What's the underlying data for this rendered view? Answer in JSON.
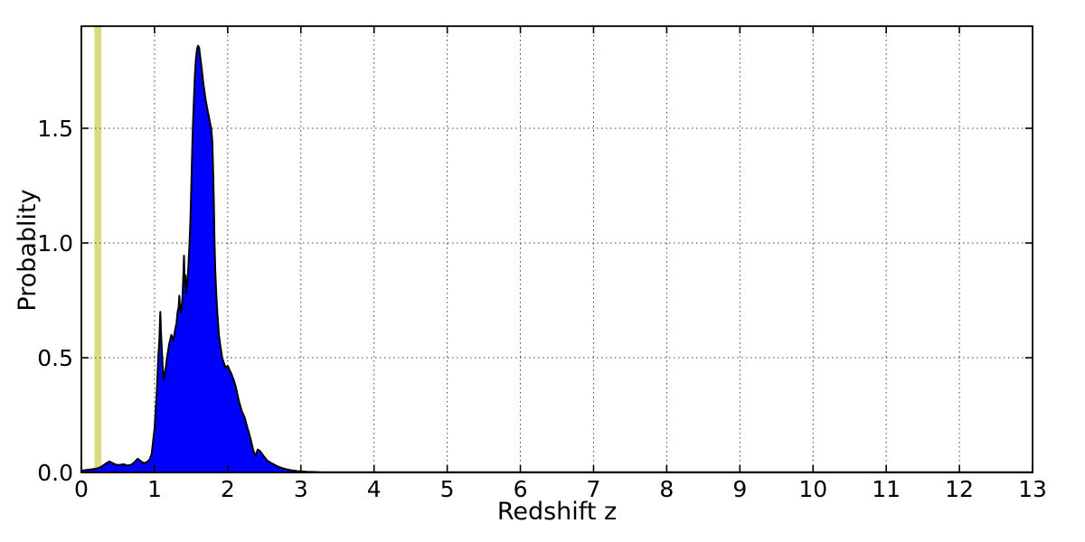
{
  "chart_data": {
    "type": "area",
    "title": "",
    "xlabel": "Redshift  z",
    "ylabel": "Probablity",
    "xlim": [
      0,
      13
    ],
    "ylim": [
      0,
      1.945
    ],
    "grid": "dotted",
    "legend": "none",
    "colors": {
      "fill": "#0000ff",
      "edge": "#000000",
      "band": "#dbdc81",
      "spine": "#000000",
      "grid": "#000000",
      "background": "#ffffff"
    },
    "xticks": [
      {
        "v": 0,
        "label": "0"
      },
      {
        "v": 1,
        "label": "1"
      },
      {
        "v": 2,
        "label": "2"
      },
      {
        "v": 3,
        "label": "3"
      },
      {
        "v": 4,
        "label": "4"
      },
      {
        "v": 5,
        "label": "5"
      },
      {
        "v": 6,
        "label": "6"
      },
      {
        "v": 7,
        "label": "7"
      },
      {
        "v": 8,
        "label": "8"
      },
      {
        "v": 9,
        "label": "9"
      },
      {
        "v": 10,
        "label": "10"
      },
      {
        "v": 11,
        "label": "11"
      },
      {
        "v": 12,
        "label": "12"
      },
      {
        "v": 13,
        "label": "13"
      }
    ],
    "yticks": [
      {
        "v": 0.0,
        "label": "0.0"
      },
      {
        "v": 0.5,
        "label": "0.5"
      },
      {
        "v": 1.0,
        "label": "1.0"
      },
      {
        "v": 1.5,
        "label": "1.5"
      }
    ],
    "vspan": {
      "name": "spec-z-highlight-band",
      "x0": 0.178,
      "x1": 0.274
    },
    "series": [
      {
        "name": "photo-z-probability-density",
        "peak_z": 1.6,
        "peak_value": 1.86,
        "points": [
          [
            0.0,
            0.008
          ],
          [
            0.1,
            0.012
          ],
          [
            0.2,
            0.016
          ],
          [
            0.27,
            0.024
          ],
          [
            0.33,
            0.038
          ],
          [
            0.38,
            0.048
          ],
          [
            0.43,
            0.04
          ],
          [
            0.48,
            0.033
          ],
          [
            0.53,
            0.033
          ],
          [
            0.58,
            0.036
          ],
          [
            0.63,
            0.03
          ],
          [
            0.68,
            0.033
          ],
          [
            0.73,
            0.046
          ],
          [
            0.77,
            0.06
          ],
          [
            0.81,
            0.05
          ],
          [
            0.85,
            0.041
          ],
          [
            0.89,
            0.044
          ],
          [
            0.93,
            0.055
          ],
          [
            0.96,
            0.08
          ],
          [
            1.0,
            0.19
          ],
          [
            1.03,
            0.35
          ],
          [
            1.05,
            0.5
          ],
          [
            1.065,
            0.575
          ],
          [
            1.079,
            0.7
          ],
          [
            1.09,
            0.6
          ],
          [
            1.11,
            0.47
          ],
          [
            1.13,
            0.4
          ],
          [
            1.15,
            0.45
          ],
          [
            1.17,
            0.5
          ],
          [
            1.2,
            0.56
          ],
          [
            1.23,
            0.6
          ],
          [
            1.255,
            0.575
          ],
          [
            1.28,
            0.62
          ],
          [
            1.3,
            0.65
          ],
          [
            1.315,
            0.7
          ],
          [
            1.33,
            0.72
          ],
          [
            1.338,
            0.77
          ],
          [
            1.35,
            0.71
          ],
          [
            1.365,
            0.7
          ],
          [
            1.38,
            0.76
          ],
          [
            1.393,
            0.85
          ],
          [
            1.402,
            0.945
          ],
          [
            1.413,
            0.82
          ],
          [
            1.422,
            0.86
          ],
          [
            1.433,
            0.78
          ],
          [
            1.445,
            0.82
          ],
          [
            1.46,
            0.88
          ],
          [
            1.478,
            1.0
          ],
          [
            1.49,
            1.1
          ],
          [
            1.505,
            1.28
          ],
          [
            1.52,
            1.47
          ],
          [
            1.535,
            1.6
          ],
          [
            1.55,
            1.72
          ],
          [
            1.565,
            1.8
          ],
          [
            1.58,
            1.845
          ],
          [
            1.595,
            1.86
          ],
          [
            1.61,
            1.85
          ],
          [
            1.625,
            1.81
          ],
          [
            1.645,
            1.76
          ],
          [
            1.67,
            1.69
          ],
          [
            1.7,
            1.62
          ],
          [
            1.73,
            1.57
          ],
          [
            1.755,
            1.53
          ],
          [
            1.775,
            1.5
          ],
          [
            1.79,
            1.44
          ],
          [
            1.8,
            1.32
          ],
          [
            1.81,
            1.18
          ],
          [
            1.82,
            1.0
          ],
          [
            1.83,
            0.88
          ],
          [
            1.845,
            0.77
          ],
          [
            1.86,
            0.69
          ],
          [
            1.88,
            0.6
          ],
          [
            1.9,
            0.55
          ],
          [
            1.925,
            0.5
          ],
          [
            1.95,
            0.475
          ],
          [
            1.975,
            0.455
          ],
          [
            2.0,
            0.465
          ],
          [
            2.02,
            0.45
          ],
          [
            2.05,
            0.43
          ],
          [
            2.08,
            0.405
          ],
          [
            2.11,
            0.375
          ],
          [
            2.15,
            0.315
          ],
          [
            2.19,
            0.27
          ],
          [
            2.23,
            0.24
          ],
          [
            2.27,
            0.195
          ],
          [
            2.31,
            0.15
          ],
          [
            2.35,
            0.095
          ],
          [
            2.38,
            0.072
          ],
          [
            2.41,
            0.1
          ],
          [
            2.445,
            0.092
          ],
          [
            2.49,
            0.072
          ],
          [
            2.54,
            0.052
          ],
          [
            2.6,
            0.04
          ],
          [
            2.67,
            0.028
          ],
          [
            2.75,
            0.018
          ],
          [
            2.84,
            0.011
          ],
          [
            2.95,
            0.006
          ],
          [
            3.08,
            0.003
          ],
          [
            3.25,
            0.0015
          ],
          [
            3.5,
            0.001
          ],
          [
            13.0,
            0.0008
          ]
        ]
      }
    ]
  }
}
